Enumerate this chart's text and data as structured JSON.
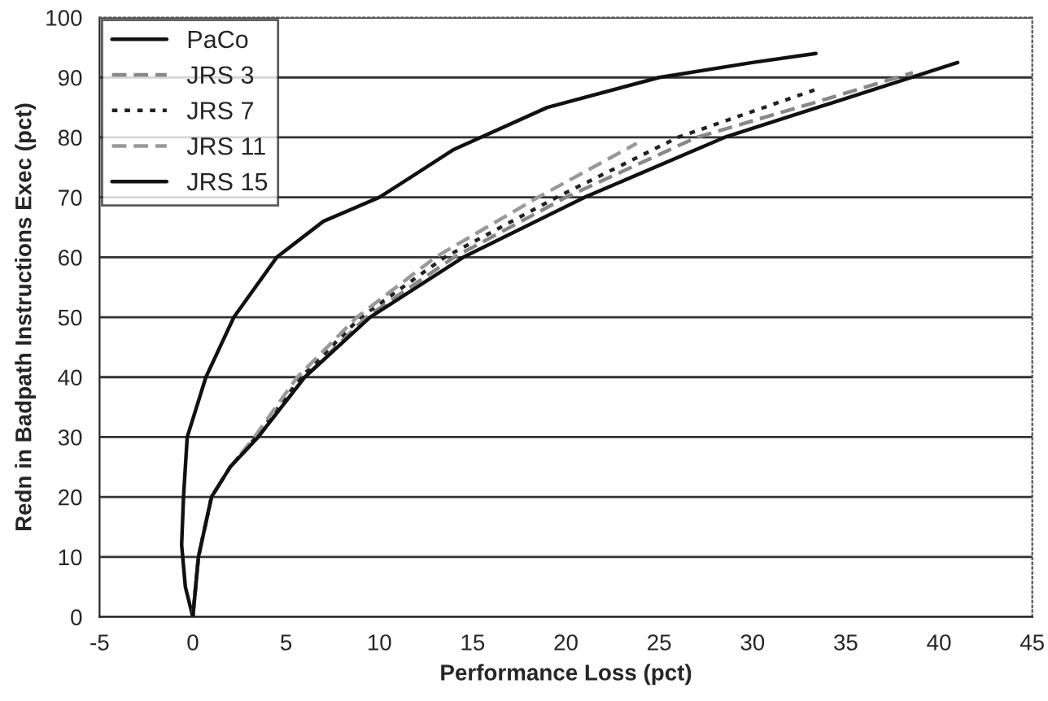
{
  "chart_data": {
    "type": "line",
    "xlabel": "Performance Loss (pct)",
    "ylabel": "Redn in Badpath Instructions Exec (pct)",
    "xlim": [
      -5,
      45
    ],
    "xticks": [
      -5,
      0,
      5,
      10,
      15,
      20,
      25,
      30,
      35,
      40,
      45
    ],
    "ylim": [
      0,
      100
    ],
    "yticks": [
      0,
      10,
      20,
      30,
      40,
      50,
      60,
      70,
      80,
      90,
      100
    ],
    "grid": "y",
    "legend": "top left",
    "marker": "none",
    "series": [
      {
        "name": "PaCo",
        "color": "#111111",
        "line_style": "solid",
        "x": [
          0,
          -0.4,
          -0.6,
          -0.5,
          -0.3,
          0.7,
          2.2,
          4.5,
          7,
          10,
          14,
          19,
          25,
          30,
          33.4
        ],
        "values": [
          0,
          5,
          12,
          20,
          30,
          40,
          50,
          60,
          66,
          70,
          78,
          85,
          90,
          92.5,
          94
        ]
      },
      {
        "name": "JRS 3",
        "color": "#888888",
        "line_style": "dashed",
        "x": [
          0,
          0.3,
          1,
          2,
          3.5,
          6,
          9.3,
          14,
          20,
          27,
          33,
          38.6
        ],
        "values": [
          0,
          10,
          20,
          25,
          30,
          40,
          50,
          60,
          70,
          80,
          85.5,
          90.8
        ]
      },
      {
        "name": "JRS 7",
        "color": "#222222",
        "line_style": "dotted",
        "x": [
          0,
          0.3,
          1,
          2,
          3.4,
          5.8,
          9,
          13.5,
          19.5,
          26,
          33.4
        ],
        "values": [
          0,
          10,
          20,
          25,
          30,
          40,
          50,
          60,
          70,
          80,
          88
        ]
      },
      {
        "name": "JRS 11",
        "color": "#999999",
        "line_style": "dashed",
        "x": [
          0,
          0.3,
          1,
          2,
          3.3,
          5.6,
          8.8,
          13,
          18.5,
          23.8
        ],
        "values": [
          0,
          10,
          20,
          25,
          30,
          40,
          50,
          60,
          70,
          79
        ]
      },
      {
        "name": "JRS 15",
        "color": "#111111",
        "line_style": "solid",
        "x": [
          0,
          0.3,
          1,
          2,
          3.5,
          6,
          9.5,
          14.5,
          21,
          28.5,
          35,
          41
        ],
        "values": [
          0,
          10,
          20,
          25,
          30,
          40,
          50,
          60,
          70,
          80,
          86.5,
          92.5
        ]
      }
    ]
  }
}
